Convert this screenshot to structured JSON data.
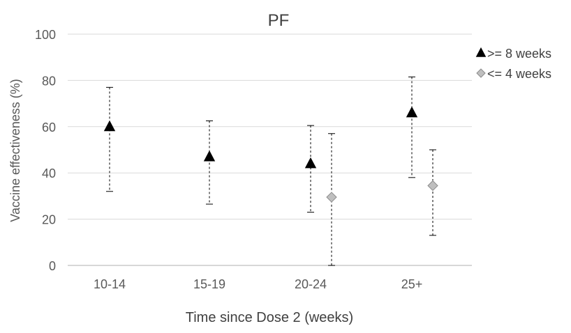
{
  "chart_data": {
    "type": "scatter",
    "title": "PF",
    "xlabel": "Time since Dose 2 (weeks)",
    "ylabel": "Vaccine effectiveness (%)",
    "categories": [
      "10-14",
      "15-19",
      "20-24",
      "25+"
    ],
    "ylim": [
      0,
      100
    ],
    "yticks": [
      0,
      20,
      40,
      60,
      80,
      100
    ],
    "grid": true,
    "legend_position": "top-right",
    "error_bars": "dashed",
    "series": [
      {
        "name": ">= 8 weeks",
        "marker": "triangle",
        "color": "#000000",
        "points": [
          {
            "category": "10-14",
            "value": 60,
            "lower": 32,
            "upper": 77
          },
          {
            "category": "15-19",
            "value": 47,
            "lower": 26.5,
            "upper": 62.5
          },
          {
            "category": "20-24",
            "value": 44,
            "lower": 23,
            "upper": 60.5
          },
          {
            "category": "25+",
            "value": 66,
            "lower": 38,
            "upper": 81.5
          }
        ]
      },
      {
        "name": "<= 4 weeks",
        "marker": "diamond",
        "color": "#bfbfbf",
        "points": [
          {
            "category": "20-24",
            "value": 29.5,
            "lower": 0,
            "upper": 57
          },
          {
            "category": "25+",
            "value": 34.5,
            "lower": 13,
            "upper": 50
          }
        ]
      }
    ]
  }
}
